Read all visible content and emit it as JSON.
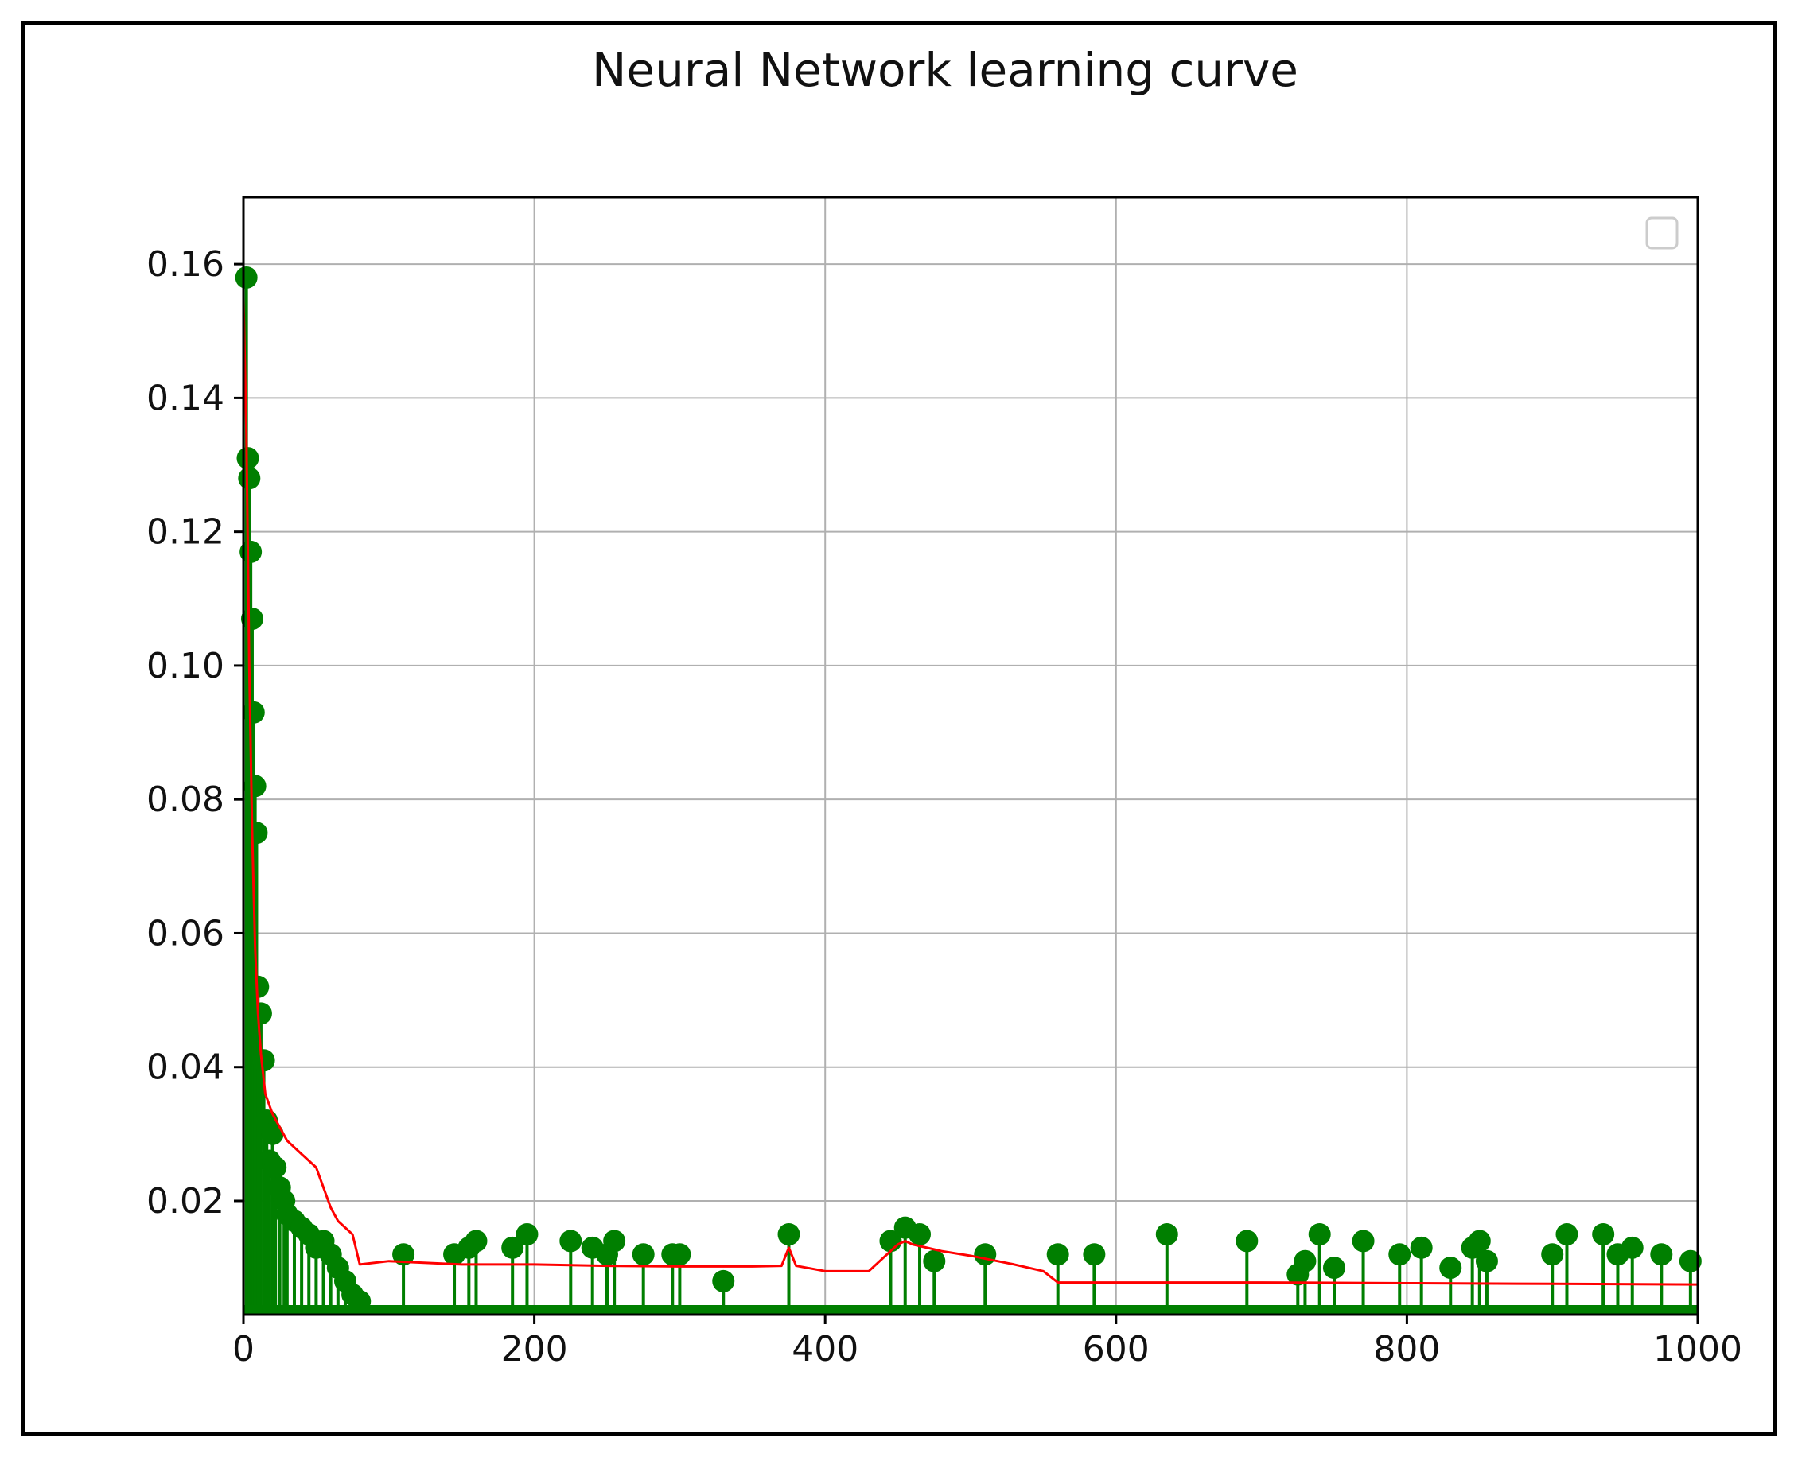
{
  "chart_data": {
    "type": "line",
    "title": "Neural Network learning curve",
    "xlabel": "",
    "ylabel": "",
    "xlim": [
      0,
      1000
    ],
    "ylim": [
      0.003,
      0.17
    ],
    "xticks": [
      0,
      200,
      400,
      600,
      800,
      1000
    ],
    "xtick_labels": [
      "0",
      "200",
      "400",
      "600",
      "800",
      "1000"
    ],
    "yticks": [
      0.02,
      0.04,
      0.06,
      0.08,
      0.1,
      0.12,
      0.14,
      0.16
    ],
    "ytick_labels": [
      "0.02",
      "0.04",
      "0.06",
      "0.08",
      "0.10",
      "0.12",
      "0.14",
      "0.16"
    ],
    "grid": true,
    "legend": "top-right (empty)",
    "colors": {
      "line": "#ff0000",
      "stem": "#007f00",
      "grid": "#b0b0b0",
      "axes": "#000000"
    },
    "series": [
      {
        "type": "line",
        "x": [
          0,
          2,
          4,
          6,
          8,
          10,
          12,
          15,
          20,
          25,
          30,
          35,
          40,
          45,
          50,
          55,
          60,
          65,
          70,
          75,
          80,
          100,
          150,
          200,
          250,
          300,
          350,
          370,
          375,
          380,
          400,
          430,
          450,
          455,
          460,
          470,
          480,
          500,
          530,
          550,
          560,
          600,
          700,
          800,
          900,
          1000
        ],
        "y": [
          0.155,
          0.135,
          0.1,
          0.075,
          0.058,
          0.048,
          0.042,
          0.036,
          0.033,
          0.031,
          0.029,
          0.028,
          0.027,
          0.026,
          0.025,
          0.022,
          0.019,
          0.017,
          0.016,
          0.015,
          0.0105,
          0.011,
          0.0105,
          0.0105,
          0.0103,
          0.0102,
          0.0102,
          0.0103,
          0.013,
          0.0103,
          0.0095,
          0.0095,
          0.0135,
          0.014,
          0.0135,
          0.013,
          0.0125,
          0.0118,
          0.0105,
          0.0095,
          0.0078,
          0.0078,
          0.0078,
          0.0077,
          0.0076,
          0.0075
        ]
      },
      {
        "type": "stem",
        "x": [
          2,
          3,
          4,
          5,
          6,
          7,
          8,
          9,
          10,
          12,
          14,
          16,
          18,
          20,
          22,
          25,
          28,
          30,
          35,
          40,
          45,
          50,
          55,
          60,
          65,
          70,
          75,
          80,
          110,
          145,
          155,
          160,
          185,
          195,
          225,
          240,
          250,
          255,
          275,
          295,
          300,
          330,
          375,
          445,
          455,
          465,
          475,
          510,
          560,
          585,
          635,
          690,
          725,
          730,
          740,
          750,
          770,
          795,
          810,
          830,
          845,
          850,
          855,
          900,
          910,
          935,
          945,
          955,
          975,
          995
        ],
        "y": [
          0.158,
          0.131,
          0.128,
          0.117,
          0.107,
          0.093,
          0.082,
          0.075,
          0.052,
          0.048,
          0.041,
          0.032,
          0.026,
          0.03,
          0.025,
          0.022,
          0.02,
          0.018,
          0.017,
          0.016,
          0.015,
          0.013,
          0.014,
          0.012,
          0.01,
          0.008,
          0.006,
          0.005,
          0.012,
          0.012,
          0.013,
          0.014,
          0.013,
          0.015,
          0.014,
          0.013,
          0.012,
          0.014,
          0.012,
          0.012,
          0.012,
          0.008,
          0.015,
          0.014,
          0.016,
          0.015,
          0.011,
          0.012,
          0.012,
          0.012,
          0.015,
          0.014,
          0.009,
          0.011,
          0.015,
          0.01,
          0.014,
          0.012,
          0.013,
          0.01,
          0.013,
          0.014,
          0.011,
          0.012,
          0.015,
          0.015,
          0.012,
          0.013,
          0.012,
          0.011
        ]
      }
    ]
  }
}
